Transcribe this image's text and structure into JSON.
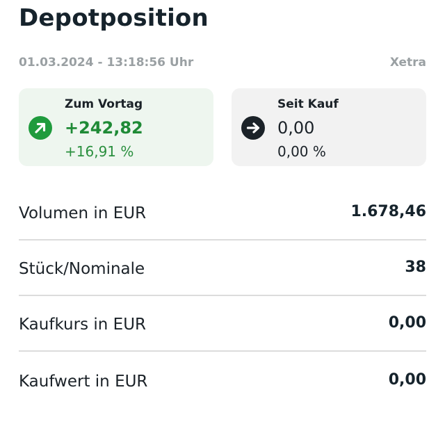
{
  "page": {
    "title": "Depotposition",
    "timestamp": "01.03.2024 - 13:18:56 Uhr",
    "exchange": "Xetra"
  },
  "cards": {
    "day": {
      "label": "Zum Vortag",
      "value": "+242,82",
      "percent": "+16,91 %",
      "icon": "arrow-up-right-icon",
      "color": "#1f9b3d"
    },
    "since_buy": {
      "label": "Seit Kauf",
      "value": "0,00",
      "percent": "0,00 %",
      "icon": "arrow-right-icon",
      "color": "#1b2228"
    }
  },
  "details": [
    {
      "label": "Volumen in EUR",
      "value": "1.678,46"
    },
    {
      "label": "Stück/Nominale",
      "value": "38"
    },
    {
      "label": "Kaufkurs in EUR",
      "value": "0,00"
    },
    {
      "label": "Kaufwert in EUR",
      "value": "0,00"
    }
  ]
}
